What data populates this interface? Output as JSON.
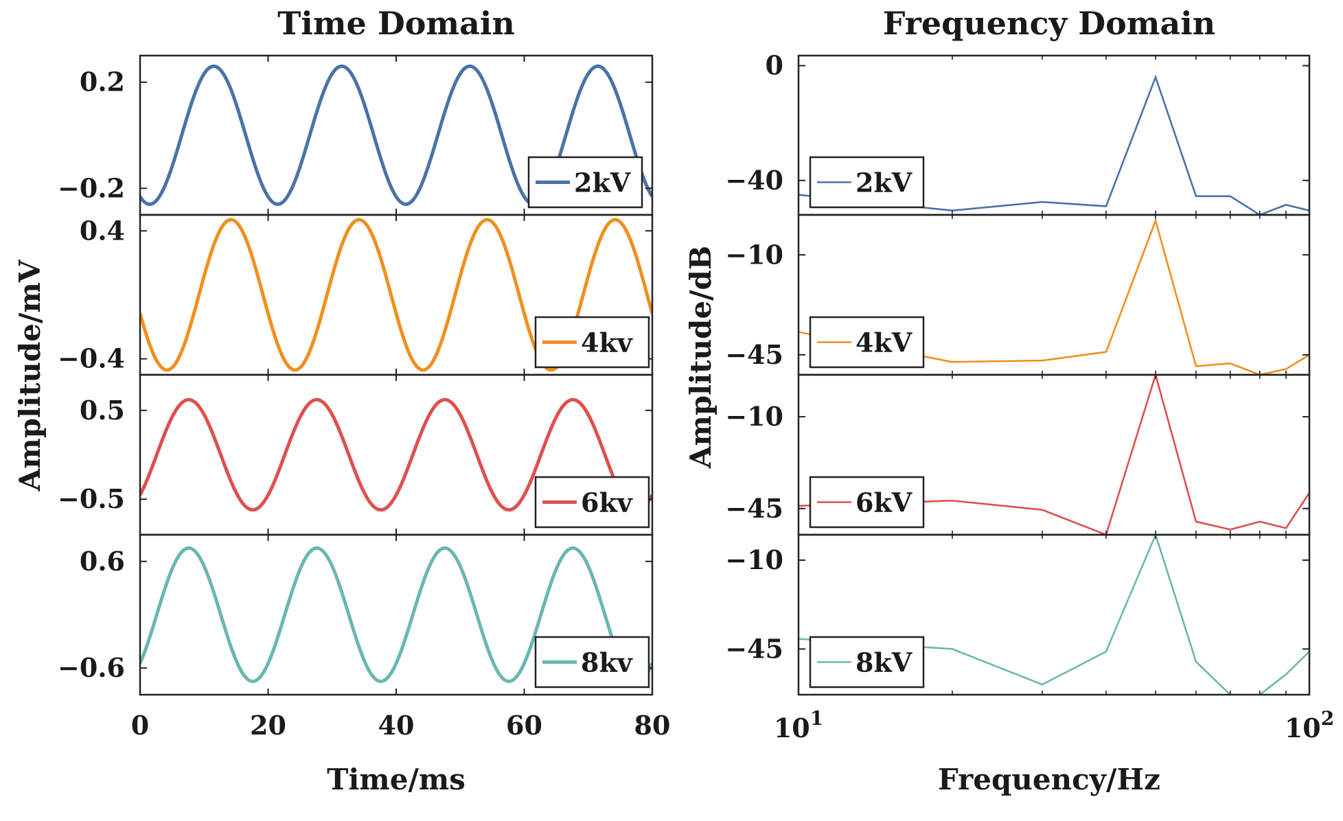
{
  "chart_data": [
    {
      "type": "line",
      "title": "Time Domain",
      "xlabel": "Time/ms",
      "ylabel": "Amplitude/mV",
      "xlim": [
        0,
        80
      ],
      "xticks": [
        "0",
        "20",
        "40",
        "60",
        "80"
      ],
      "panels": [
        {
          "legend": "2kV",
          "color": "#4a72a8",
          "amplitude": 0.26,
          "period_ms": 20,
          "peak_at_ms": 11.5,
          "ylim": [
            -0.3,
            0.3
          ],
          "yticks": [
            {
              "value": 0.2,
              "label": "0.2"
            },
            {
              "value": -0.2,
              "label": "−0.2"
            }
          ]
        },
        {
          "legend": "4kv",
          "color": "#f28e1e",
          "amplitude": 0.47,
          "period_ms": 20,
          "peak_at_ms": 14.2,
          "ylim": [
            -0.5,
            0.5
          ],
          "yticks": [
            {
              "value": 0.4,
              "label": "0.4"
            },
            {
              "value": -0.4,
              "label": "−0.4"
            }
          ]
        },
        {
          "legend": "6kv",
          "color": "#df4f4f",
          "amplitude": 0.62,
          "period_ms": 20,
          "peak_at_ms": 7.6,
          "ylim": [
            -0.9,
            0.9
          ],
          "yticks": [
            {
              "value": 0.5,
              "label": "0.5"
            },
            {
              "value": -0.5,
              "label": "−0.5"
            }
          ]
        },
        {
          "legend": "8kv",
          "color": "#69b8b0",
          "amplitude": 0.75,
          "period_ms": 20,
          "peak_at_ms": 7.6,
          "ylim": [
            -0.9,
            0.9
          ],
          "yticks": [
            {
              "value": 0.6,
              "label": "0.6"
            },
            {
              "value": -0.6,
              "label": "−0.6"
            }
          ]
        }
      ]
    },
    {
      "type": "line",
      "title": "Frequency Domain",
      "xlabel": "Frequency/Hz",
      "ylabel": "Amplitude/dB",
      "xscale": "log",
      "xlim": [
        10,
        100
      ],
      "xticks": [
        {
          "base": "10",
          "exp": "1"
        },
        {
          "base": "10",
          "exp": "2"
        }
      ],
      "panels": [
        {
          "legend": "2kV",
          "color": "#4a72a8",
          "ylim": [
            -52,
            3.5
          ],
          "yticks": [
            {
              "value": 0,
              "label": "0"
            },
            {
              "value": -40,
              "label": "−40"
            }
          ],
          "x": [
            10,
            20,
            30,
            40,
            50,
            60,
            70,
            80,
            90,
            100
          ],
          "y": [
            -45,
            -50.5,
            -47.5,
            -49,
            -4,
            -45.5,
            -45.5,
            -52,
            -48.5,
            -50.5
          ]
        },
        {
          "legend": "4kV",
          "color": "#f28e1e",
          "ylim": [
            -52,
            4
          ],
          "yticks": [
            {
              "value": -10,
              "label": "−10"
            },
            {
              "value": -45,
              "label": "−45"
            }
          ],
          "x": [
            10,
            20,
            30,
            40,
            50,
            60,
            70,
            80,
            90,
            100
          ],
          "y": [
            -37,
            -47.5,
            -47,
            -44,
            2,
            -49,
            -48,
            -52,
            -50,
            -45
          ]
        },
        {
          "legend": "6kV",
          "color": "#df4f4f",
          "ylim": [
            -55,
            6
          ],
          "yticks": [
            {
              "value": -10,
              "label": "−10"
            },
            {
              "value": -45,
              "label": "−45"
            }
          ],
          "x": [
            10,
            20,
            30,
            40,
            50,
            60,
            70,
            80,
            90,
            100
          ],
          "y": [
            -44,
            -42,
            -45.5,
            -55,
            6,
            -50,
            -53,
            -50,
            -52.5,
            -39
          ]
        },
        {
          "legend": "8kV",
          "color": "#69b8b0",
          "ylim": [
            -63,
            0
          ],
          "yticks": [
            {
              "value": -10,
              "label": "−10"
            },
            {
              "value": -45,
              "label": "−45"
            }
          ],
          "x": [
            10,
            20,
            30,
            40,
            50,
            60,
            70,
            80,
            90,
            100
          ],
          "y": [
            -41,
            -45,
            -59,
            -46,
            0,
            -50,
            -63,
            -63,
            -55,
            -46
          ]
        }
      ]
    }
  ]
}
